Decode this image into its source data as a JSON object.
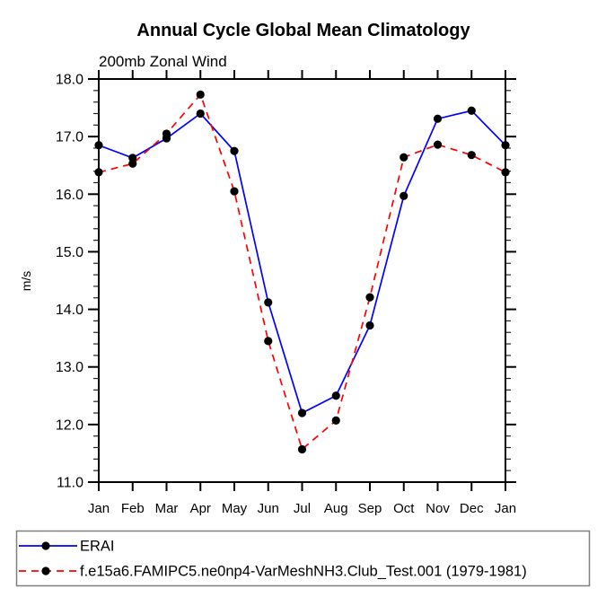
{
  "chart_data": {
    "type": "line",
    "title": "Annual Cycle Global Mean Climatology",
    "subtitle": "200mb Zonal Wind",
    "ylabel": "m/s",
    "xlabel": "",
    "categories": [
      "Jan",
      "Feb",
      "Mar",
      "Apr",
      "May",
      "Jun",
      "Jul",
      "Aug",
      "Sep",
      "Oct",
      "Nov",
      "Dec",
      "Jan"
    ],
    "ylim": [
      11.0,
      18.0
    ],
    "ytick_interval": 1.0,
    "yminor_interval": 0.2,
    "ytick_labels": [
      "11.0",
      "12.0",
      "13.0",
      "14.0",
      "15.0",
      "16.0",
      "17.0",
      "18.0"
    ],
    "grid": false,
    "legend_position": "bottom-left-box",
    "axis_color": "#000000",
    "marker_color": "#000000",
    "legend_border_color": "#7f7f7f",
    "series": [
      {
        "name": "ERAI",
        "color": "#0000ff",
        "style": "solid",
        "marker": "circle",
        "values": [
          16.85,
          16.63,
          16.97,
          17.4,
          16.75,
          14.12,
          12.2,
          12.5,
          13.72,
          15.97,
          17.31,
          17.45,
          16.85
        ]
      },
      {
        "name": "f.e15a6.FAMIPC5.ne0np4-VarMeshNH3.Club_Test.001 (1979-1981)",
        "color": "#ff0000",
        "style": "dashed",
        "marker": "circle",
        "values": [
          16.38,
          16.53,
          17.05,
          17.73,
          16.05,
          13.45,
          11.57,
          12.07,
          14.21,
          16.64,
          16.86,
          16.68,
          16.38
        ]
      }
    ]
  }
}
